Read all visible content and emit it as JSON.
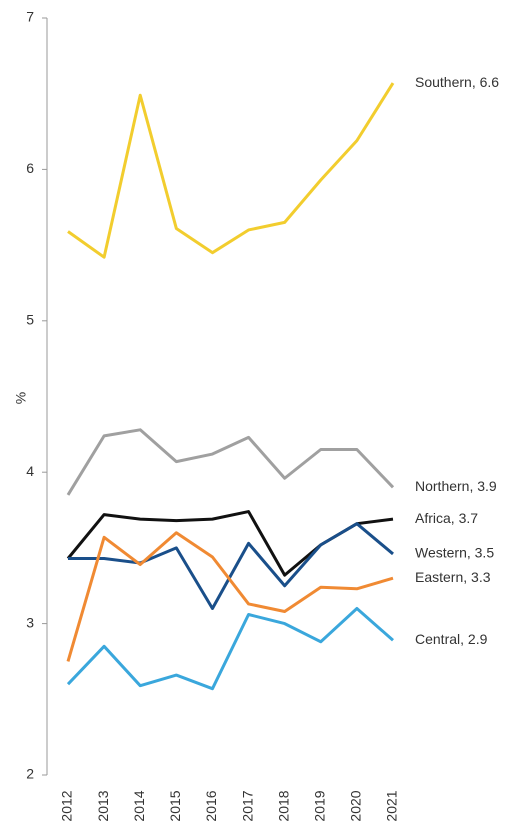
{
  "chart_data": {
    "type": "line",
    "ylabel": "%",
    "x": [
      "2012",
      "2013",
      "2014",
      "2015",
      "2016",
      "2017",
      "2018",
      "2019",
      "2020",
      "2021"
    ],
    "ylim": [
      2,
      7
    ],
    "yticks": [
      2,
      3,
      4,
      5,
      6,
      7
    ],
    "series": [
      {
        "name": "Southern, 6.6",
        "color": "#f2cd2e",
        "values": [
          5.59,
          5.42,
          6.49,
          5.61,
          5.45,
          5.6,
          5.65,
          5.93,
          6.19,
          6.57
        ]
      },
      {
        "name": "Northern, 3.9",
        "color": "#a0a0a0",
        "values": [
          3.85,
          4.24,
          4.28,
          4.07,
          4.12,
          4.23,
          3.96,
          4.15,
          4.15,
          3.9
        ]
      },
      {
        "name": "Africa, 3.7",
        "color": "#111111",
        "values": [
          3.43,
          3.72,
          3.69,
          3.68,
          3.69,
          3.74,
          3.32,
          3.52,
          3.66,
          3.69
        ]
      },
      {
        "name": "Western, 3.5",
        "color": "#1a4f8a",
        "values": [
          3.43,
          3.43,
          3.4,
          3.5,
          3.1,
          3.53,
          3.25,
          3.52,
          3.66,
          3.46
        ]
      },
      {
        "name": "Eastern, 3.3",
        "color": "#f08a33",
        "values": [
          2.75,
          3.57,
          3.39,
          3.6,
          3.44,
          3.13,
          3.08,
          3.24,
          3.23,
          3.3
        ]
      },
      {
        "name": "Central, 2.9",
        "color": "#3aa7dc",
        "values": [
          2.6,
          2.85,
          2.59,
          2.66,
          2.57,
          3.06,
          3.0,
          2.88,
          3.1,
          2.89
        ]
      }
    ]
  }
}
